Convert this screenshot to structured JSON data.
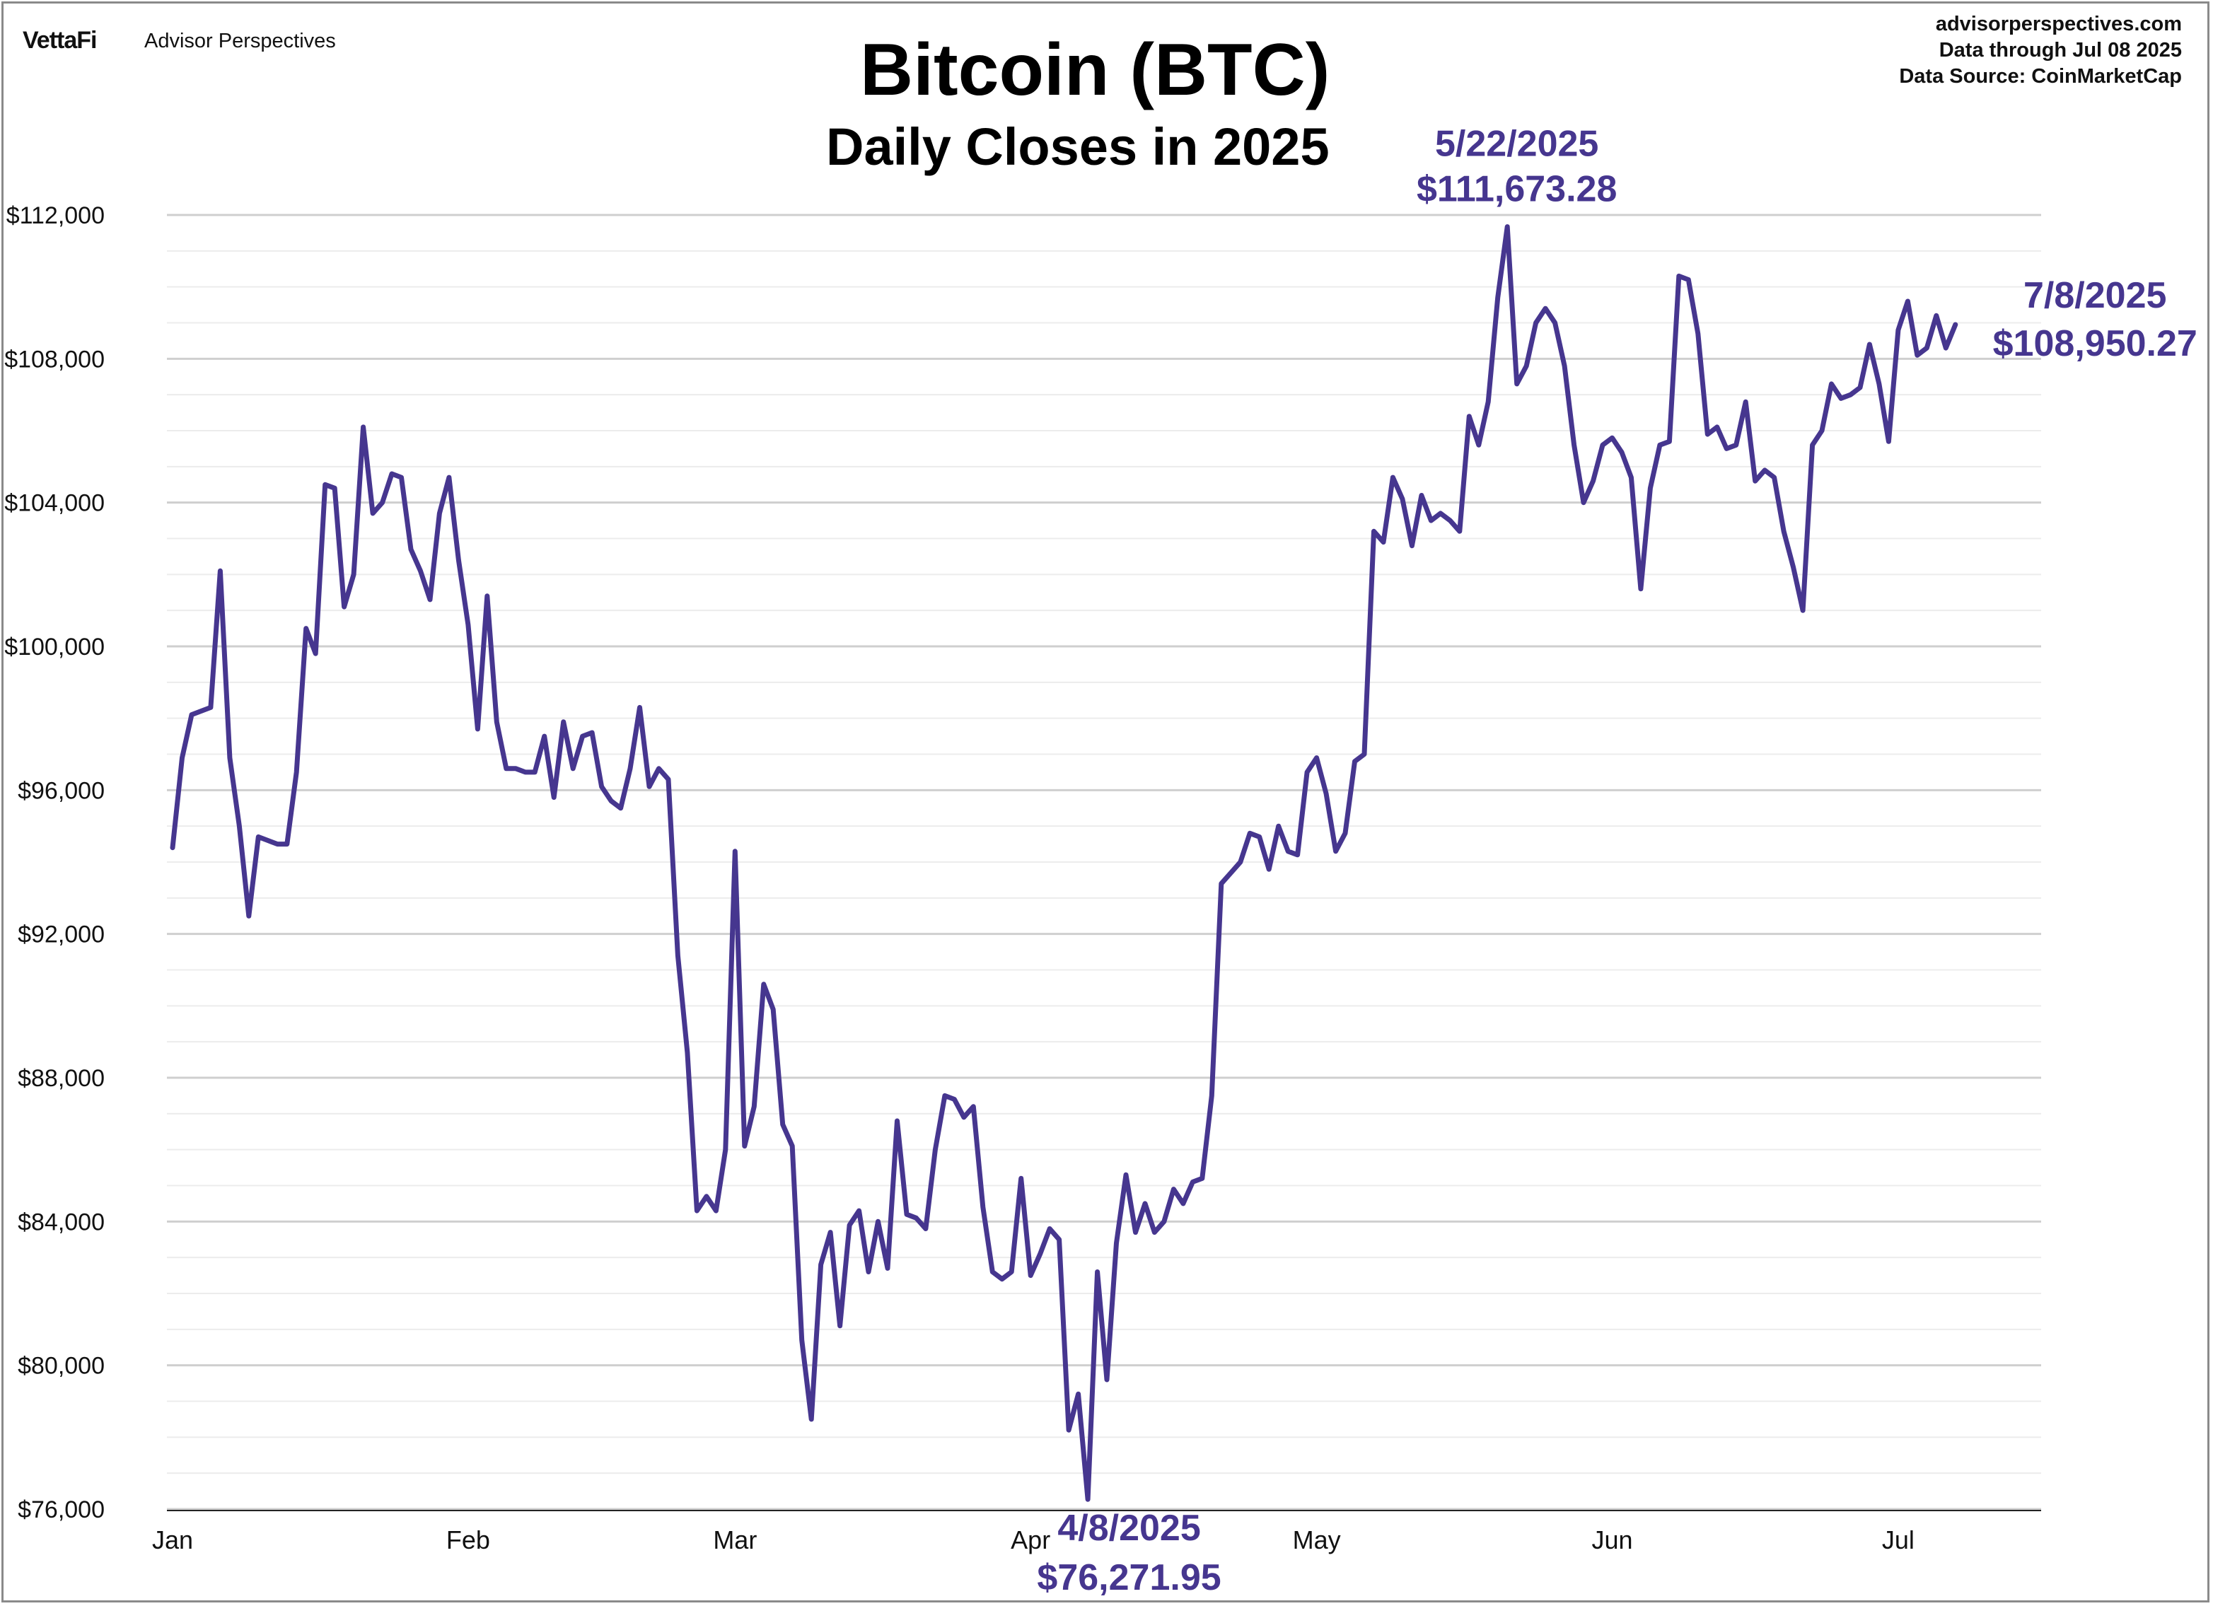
{
  "brand": {
    "logo_text": "VettaFi",
    "name": "Advisor Perspectives"
  },
  "source_info": {
    "site": "advisorperspectives.com",
    "data_through": "Data through  Jul 08 2025",
    "data_source": "Data Source:  CoinMarketCap"
  },
  "colors": {
    "series": "#46368f",
    "annotation": "#46368f",
    "grid": "#d4d4d4",
    "axis": "#111111"
  },
  "chart_data": {
    "type": "line",
    "title": "Bitcoin (BTC)",
    "subtitle": "Daily Closes in 2025",
    "xlabel": "",
    "ylabel": "",
    "ylim": [
      76000,
      112000
    ],
    "grid": true,
    "y_ticks": [
      76000,
      80000,
      84000,
      88000,
      92000,
      96000,
      100000,
      104000,
      108000,
      112000
    ],
    "y_tick_labels": [
      "$76,000",
      "$80,000",
      "$84,000",
      "$88,000",
      "$92,000",
      "$96,000",
      "$100,000",
      "$104,000",
      "$108,000",
      "$112,000"
    ],
    "x_ticks": [
      {
        "label": "Jan",
        "day": 1
      },
      {
        "label": "Feb",
        "day": 32
      },
      {
        "label": "Mar",
        "day": 60
      },
      {
        "label": "Apr",
        "day": 91
      },
      {
        "label": "May",
        "day": 121
      },
      {
        "label": "Jun",
        "day": 152
      },
      {
        "label": "Jul",
        "day": 182
      }
    ],
    "series": [
      {
        "name": "Bitcoin (BTC)",
        "x_start": "2025-01-01",
        "values": [
          94400,
          96900,
          98100,
          98200,
          98300,
          102100,
          96900,
          95000,
          92500,
          94700,
          94600,
          94500,
          94500,
          96500,
          100500,
          99800,
          104500,
          104400,
          101100,
          102000,
          106100,
          103700,
          104000,
          104800,
          104700,
          102700,
          102100,
          101300,
          103700,
          104700,
          102400,
          100600,
          97700,
          101400,
          97900,
          96600,
          96600,
          96500,
          96500,
          97500,
          95800,
          97900,
          96600,
          97500,
          97600,
          96100,
          95700,
          95500,
          96600,
          98300,
          96100,
          96600,
          96300,
          91400,
          88700,
          84300,
          84700,
          84300,
          86000,
          94300,
          86100,
          87200,
          90600,
          89900,
          86700,
          86100,
          80700,
          78500,
          82800,
          83700,
          81100,
          83900,
          84300,
          82600,
          84000,
          82700,
          86800,
          84200,
          84100,
          83800,
          86000,
          87500,
          87400,
          86900,
          87200,
          84400,
          82600,
          82400,
          82600,
          85200,
          82500,
          83100,
          83800,
          83500,
          78200,
          79200,
          76272,
          82600,
          79600,
          83400,
          85300,
          83700,
          84500,
          83700,
          84000,
          84900,
          84500,
          85100,
          85200,
          87500,
          93400,
          93700,
          94000,
          94800,
          94700,
          93800,
          95000,
          94300,
          94200,
          96500,
          96900,
          95900,
          94300,
          94800,
          96800,
          97000,
          103200,
          102900,
          104700,
          104100,
          102800,
          104200,
          103500,
          103700,
          103500,
          103200,
          106400,
          105600,
          106800,
          109700,
          111673,
          107300,
          107800,
          109000,
          109400,
          109000,
          107800,
          105600,
          104000,
          104600,
          105600,
          105800,
          105400,
          104700,
          101600,
          104400,
          105600,
          105700,
          110300,
          110200,
          108700,
          105900,
          106100,
          105500,
          105600,
          106800,
          104600,
          104900,
          104700,
          103200,
          102200,
          101000,
          105600,
          106000,
          107300,
          106900,
          107000,
          107200,
          108400,
          107300,
          105700,
          108800,
          109600,
          108100,
          108300,
          109200,
          108300,
          108950
        ]
      }
    ],
    "annotations": [
      {
        "day": 142,
        "value": 111673.28,
        "date_label": "5/22/2025",
        "value_label": "$111,673.28"
      },
      {
        "day": 98,
        "value": 76271.95,
        "date_label": "4/8/2025",
        "value_label": "$76,271.95"
      },
      {
        "day": 189,
        "value": 108950.27,
        "date_label": "7/8/2025",
        "value_label": "$108,950.27"
      }
    ]
  }
}
